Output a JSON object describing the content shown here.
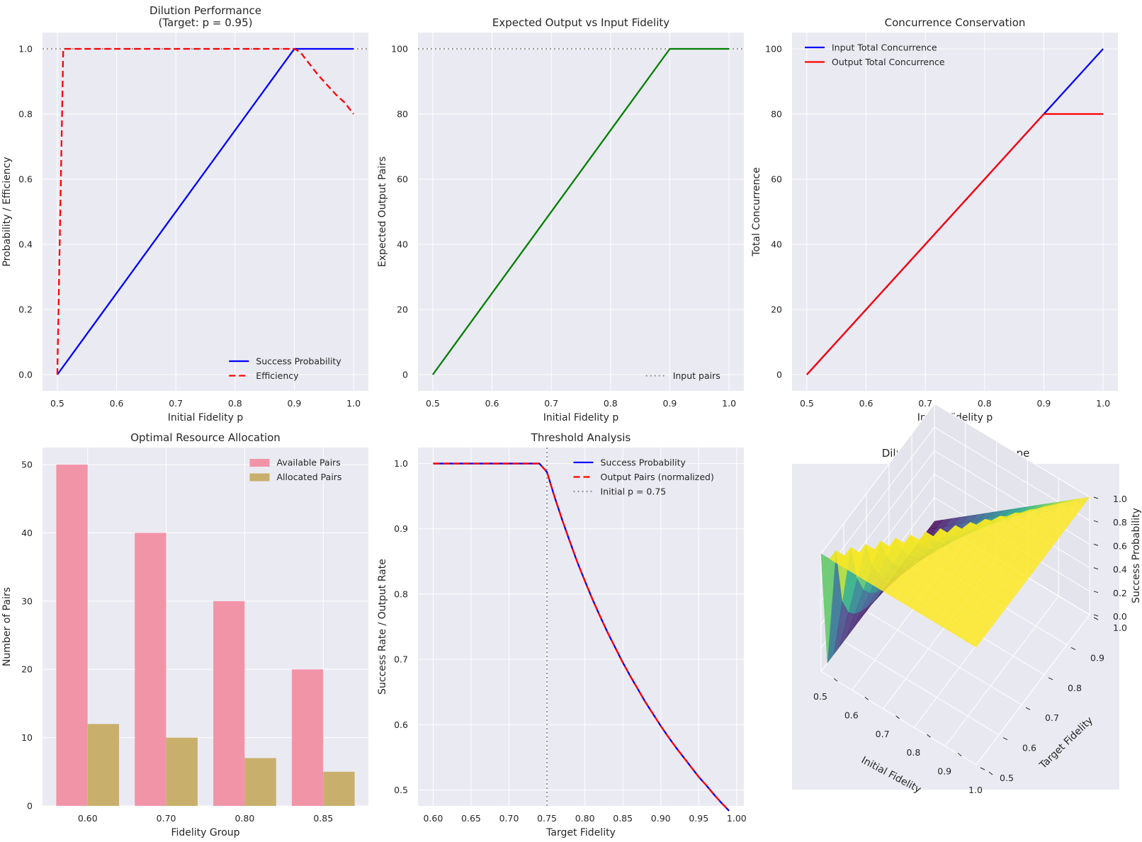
{
  "colors": {
    "panel_bg": "#EAEAF2",
    "grid": "#FFFFFF",
    "blue": "#0000FF",
    "red": "#FF0000",
    "green": "#008000",
    "gray": "#999999",
    "available": "#F294A8",
    "allocated": "#C8B06C"
  },
  "chart_data": [
    {
      "type": "line",
      "title": "Dilution Performance\n(Target: p = 0.95)",
      "xlabel": "Initial Fidelity p",
      "ylabel": "Probability / Efficiency",
      "xlim": [
        0.475,
        1.025
      ],
      "ylim": [
        -0.05,
        1.05
      ],
      "xticks": [
        0.5,
        0.6,
        0.7,
        0.8,
        0.9,
        1.0
      ],
      "xtick_labels": [
        "0.5",
        "0.6",
        "0.7",
        "0.8",
        "0.9",
        "1.0"
      ],
      "yticks": [
        0.0,
        0.2,
        0.4,
        0.6,
        0.8,
        1.0
      ],
      "ytick_labels": [
        "0.0",
        "0.2",
        "0.4",
        "0.6",
        "0.8",
        "1.0"
      ],
      "grid": true,
      "legend_position": "bottom-right",
      "hlines": [
        {
          "y": 1.0,
          "color": "gray",
          "dash": "dotted"
        }
      ],
      "series": [
        {
          "name": "Success Probability",
          "color": "blue",
          "dash": "solid",
          "x": [
            0.5,
            0.9,
            0.91,
            1.0
          ],
          "y": [
            0.0,
            1.0,
            1.0,
            1.0
          ]
        },
        {
          "name": "Efficiency",
          "color": "red",
          "dash": "dashed",
          "x": [
            0.5,
            0.51,
            0.6,
            0.7,
            0.8,
            0.9,
            0.91,
            0.925,
            0.94,
            0.955,
            0.97,
            0.985,
            1.0
          ],
          "y": [
            0.0,
            1.0,
            1.0,
            1.0,
            1.0,
            1.0,
            0.99,
            0.955,
            0.92,
            0.89,
            0.86,
            0.835,
            0.8
          ]
        }
      ]
    },
    {
      "type": "line",
      "title": "Expected Output vs Input Fidelity",
      "xlabel": "Initial Fidelity p",
      "ylabel": "Expected Output Pairs",
      "xlim": [
        0.475,
        1.025
      ],
      "ylim": [
        -5,
        105
      ],
      "xticks": [
        0.5,
        0.6,
        0.7,
        0.8,
        0.9,
        1.0
      ],
      "xtick_labels": [
        "0.5",
        "0.6",
        "0.7",
        "0.8",
        "0.9",
        "1.0"
      ],
      "yticks": [
        0,
        20,
        40,
        60,
        80,
        100
      ],
      "ytick_labels": [
        "0",
        "20",
        "40",
        "60",
        "80",
        "100"
      ],
      "grid": true,
      "legend_position": "bottom-right",
      "hlines": [
        {
          "y": 100,
          "color": "gray",
          "dash": "dotted",
          "name": "Input pairs"
        }
      ],
      "series": [
        {
          "color": "green",
          "dash": "solid",
          "x": [
            0.5,
            0.9,
            0.91,
            1.0
          ],
          "y": [
            0,
            100,
            100,
            100
          ]
        }
      ]
    },
    {
      "type": "line",
      "title": "Concurrence Conservation",
      "xlabel": "Initial Fidelity p",
      "ylabel": "Total Concurrence",
      "xlim": [
        0.475,
        1.025
      ],
      "ylim": [
        -5,
        105
      ],
      "xticks": [
        0.5,
        0.6,
        0.7,
        0.8,
        0.9,
        1.0
      ],
      "xtick_labels": [
        "0.5",
        "0.6",
        "0.7",
        "0.8",
        "0.9",
        "1.0"
      ],
      "yticks": [
        0,
        20,
        40,
        60,
        80,
        100
      ],
      "ytick_labels": [
        "0",
        "20",
        "40",
        "60",
        "80",
        "100"
      ],
      "grid": true,
      "legend_position": "top-left",
      "series": [
        {
          "name": "Input Total Concurrence",
          "color": "blue",
          "dash": "solid",
          "x": [
            0.5,
            1.0
          ],
          "y": [
            0,
            100
          ]
        },
        {
          "name": "Output Total Concurrence",
          "color": "red",
          "dash": "solid",
          "x": [
            0.5,
            0.9,
            0.91,
            1.0
          ],
          "y": [
            0,
            80,
            80,
            80
          ]
        }
      ]
    },
    {
      "type": "bar",
      "title": "Optimal Resource Allocation",
      "xlabel": "Fidelity Group",
      "ylabel": "Number of Pairs",
      "categories": [
        "0.60",
        "0.70",
        "0.80",
        "0.85"
      ],
      "ylim": [
        0,
        52.5
      ],
      "yticks": [
        0,
        10,
        20,
        30,
        40,
        50
      ],
      "ytick_labels": [
        "0",
        "10",
        "20",
        "30",
        "40",
        "50"
      ],
      "grid": true,
      "legend_position": "top-right",
      "series": [
        {
          "name": "Available Pairs",
          "color": "available",
          "values": [
            50,
            40,
            30,
            20
          ]
        },
        {
          "name": "Allocated Pairs",
          "color": "allocated",
          "values": [
            12,
            10,
            7,
            5
          ]
        }
      ]
    },
    {
      "type": "line",
      "title": "Threshold Analysis",
      "xlabel": "Target Fidelity",
      "ylabel": "Success Rate / Output Rate",
      "xlim": [
        0.58,
        1.0095
      ],
      "ylim": [
        0.4755,
        1.0245
      ],
      "xticks": [
        0.6,
        0.65,
        0.7,
        0.75,
        0.8,
        0.85,
        0.9,
        0.95,
        1.0
      ],
      "xtick_labels": [
        "0.60",
        "0.65",
        "0.70",
        "0.75",
        "0.80",
        "0.85",
        "0.90",
        "0.95",
        "1.00"
      ],
      "yticks": [
        0.5,
        0.6,
        0.7,
        0.8,
        0.9,
        1.0
      ],
      "ytick_labels": [
        "0.5",
        "0.6",
        "0.7",
        "0.8",
        "0.9",
        "1.0"
      ],
      "grid": true,
      "legend_position": "top-right",
      "vlines": [
        {
          "x": 0.75,
          "color": "gray",
          "dash": "dotted",
          "name": "Initial p = 0.75"
        }
      ],
      "series": [
        {
          "name": "Success Probability",
          "color": "blue",
          "dash": "solid",
          "x": [
            0.6,
            0.62,
            0.64,
            0.66,
            0.68,
            0.7,
            0.72,
            0.74,
            0.75,
            0.76,
            0.77,
            0.78,
            0.79,
            0.8,
            0.81,
            0.82,
            0.83,
            0.84,
            0.85,
            0.86,
            0.87,
            0.88,
            0.89,
            0.9,
            0.91,
            0.92,
            0.93,
            0.94,
            0.95,
            0.96,
            0.97,
            0.98,
            0.99
          ],
          "y": [
            1.0,
            1.0,
            1.0,
            1.0,
            1.0,
            1.0,
            1.0,
            1.0,
            0.987,
            0.949,
            0.914,
            0.881,
            0.849,
            0.82,
            0.792,
            0.766,
            0.741,
            0.718,
            0.695,
            0.674,
            0.654,
            0.634,
            0.616,
            0.598,
            0.581,
            0.565,
            0.55,
            0.535,
            0.52,
            0.507,
            0.493,
            0.48,
            0.468
          ]
        },
        {
          "name": "Output Pairs (normalized)",
          "color": "red",
          "dash": "dashed",
          "x": [
            0.6,
            0.62,
            0.64,
            0.66,
            0.68,
            0.7,
            0.72,
            0.74,
            0.75,
            0.76,
            0.77,
            0.78,
            0.79,
            0.8,
            0.81,
            0.82,
            0.83,
            0.84,
            0.85,
            0.86,
            0.87,
            0.88,
            0.89,
            0.9,
            0.91,
            0.92,
            0.93,
            0.94,
            0.95,
            0.96,
            0.97,
            0.98,
            0.99
          ],
          "y": [
            1.0,
            1.0,
            1.0,
            1.0,
            1.0,
            1.0,
            1.0,
            1.0,
            0.987,
            0.949,
            0.914,
            0.881,
            0.849,
            0.82,
            0.792,
            0.766,
            0.741,
            0.718,
            0.695,
            0.674,
            0.654,
            0.634,
            0.616,
            0.598,
            0.581,
            0.565,
            0.55,
            0.535,
            0.52,
            0.507,
            0.493,
            0.48,
            0.468
          ]
        }
      ]
    },
    {
      "type": "surface",
      "title": "Dilution Success Landscape",
      "xlabel": "Initial Fidelity",
      "ylabel": "Target Fidelity",
      "zlabel": "Success Probability",
      "xlim": [
        0.5,
        1.0
      ],
      "ylim": [
        0.5,
        1.0
      ],
      "zlim": [
        0.0,
        1.0
      ],
      "xtick_labels": [
        "0.5",
        "0.6",
        "0.7",
        "0.8",
        "0.9",
        "1.0"
      ],
      "ytick_labels": [
        "0.5",
        "0.6",
        "0.7",
        "0.8",
        "0.9",
        "1.0"
      ],
      "ztick_labels": [
        "0.0",
        "0.2",
        "0.4",
        "0.6",
        "0.8",
        "1.0"
      ],
      "colormap": "viridis"
    }
  ]
}
